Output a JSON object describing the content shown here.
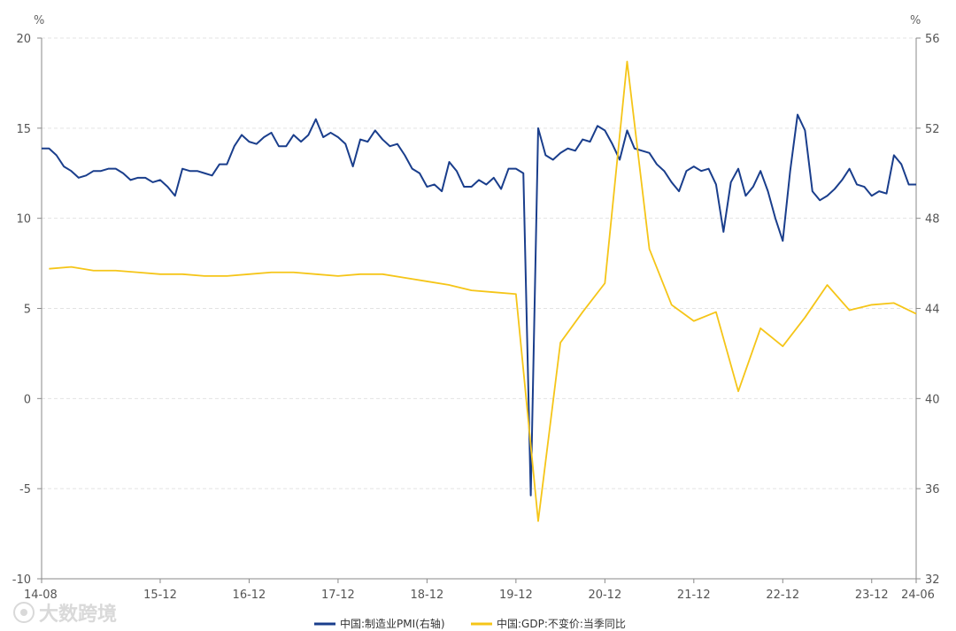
{
  "watermark": "大数跨境",
  "chart_data": {
    "type": "line",
    "grid": "horizontal dashed",
    "legend_position": "bottom-center",
    "x_ticks": [
      "14-08",
      "15-12",
      "16-12",
      "17-12",
      "18-12",
      "19-12",
      "20-12",
      "21-12",
      "22-12",
      "23-12",
      "24-06"
    ],
    "y_left": {
      "unit": "%",
      "range": [
        -10,
        20
      ],
      "ticks": [
        20,
        15,
        10,
        5,
        0,
        -5,
        -10
      ]
    },
    "y_right": {
      "unit": "%",
      "range": [
        32,
        56
      ],
      "ticks": [
        56,
        52,
        48,
        44,
        40,
        36,
        32
      ]
    },
    "colors": {
      "pmi": "#1a3e8c",
      "gdp": "#f5c518"
    },
    "series": [
      {
        "name": "中国:制造业PMI(右轴)",
        "axis": "right",
        "color": "#1a3e8c",
        "x": [
          "2014-08",
          "2014-09",
          "2014-10",
          "2014-11",
          "2014-12",
          "2015-01",
          "2015-02",
          "2015-03",
          "2015-04",
          "2015-05",
          "2015-06",
          "2015-07",
          "2015-08",
          "2015-09",
          "2015-10",
          "2015-11",
          "2015-12",
          "2016-01",
          "2016-02",
          "2016-03",
          "2016-04",
          "2016-05",
          "2016-06",
          "2016-07",
          "2016-08",
          "2016-09",
          "2016-10",
          "2016-11",
          "2016-12",
          "2017-01",
          "2017-02",
          "2017-03",
          "2017-04",
          "2017-05",
          "2017-06",
          "2017-07",
          "2017-08",
          "2017-09",
          "2017-10",
          "2017-11",
          "2017-12",
          "2018-01",
          "2018-02",
          "2018-03",
          "2018-04",
          "2018-05",
          "2018-06",
          "2018-07",
          "2018-08",
          "2018-09",
          "2018-10",
          "2018-11",
          "2018-12",
          "2019-01",
          "2019-02",
          "2019-03",
          "2019-04",
          "2019-05",
          "2019-06",
          "2019-07",
          "2019-08",
          "2019-09",
          "2019-10",
          "2019-11",
          "2019-12",
          "2020-01",
          "2020-02",
          "2020-03",
          "2020-04",
          "2020-05",
          "2020-06",
          "2020-07",
          "2020-08",
          "2020-09",
          "2020-10",
          "2020-11",
          "2020-12",
          "2021-01",
          "2021-02",
          "2021-03",
          "2021-04",
          "2021-05",
          "2021-06",
          "2021-07",
          "2021-08",
          "2021-09",
          "2021-10",
          "2021-11",
          "2021-12",
          "2022-01",
          "2022-02",
          "2022-03",
          "2022-04",
          "2022-05",
          "2022-06",
          "2022-07",
          "2022-08",
          "2022-09",
          "2022-10",
          "2022-11",
          "2022-12",
          "2023-01",
          "2023-02",
          "2023-03",
          "2023-04",
          "2023-05",
          "2023-06",
          "2023-07",
          "2023-08",
          "2023-09",
          "2023-10",
          "2023-11",
          "2023-12",
          "2024-01",
          "2024-02",
          "2024-03",
          "2024-04",
          "2024-05",
          "2024-06"
        ],
        "values": [
          51.1,
          51.1,
          50.8,
          50.3,
          50.1,
          49.8,
          49.9,
          50.1,
          50.1,
          50.2,
          50.2,
          50.0,
          49.7,
          49.8,
          49.8,
          49.6,
          49.7,
          49.4,
          49.0,
          50.2,
          50.1,
          50.1,
          50.0,
          49.9,
          50.4,
          50.4,
          51.2,
          51.7,
          51.4,
          51.3,
          51.6,
          51.8,
          51.2,
          51.2,
          51.7,
          51.4,
          51.7,
          52.4,
          51.6,
          51.8,
          51.6,
          51.3,
          50.3,
          51.5,
          51.4,
          51.9,
          51.5,
          51.2,
          51.3,
          50.8,
          50.2,
          50.0,
          49.4,
          49.5,
          49.2,
          50.5,
          50.1,
          49.4,
          49.4,
          49.7,
          49.5,
          49.8,
          49.3,
          50.2,
          50.2,
          50.0,
          35.7,
          52.0,
          50.8,
          50.6,
          50.9,
          51.1,
          51.0,
          51.5,
          51.4,
          52.1,
          51.9,
          51.3,
          50.6,
          51.9,
          51.1,
          51.0,
          50.9,
          50.4,
          50.1,
          49.6,
          49.2,
          50.1,
          50.3,
          50.1,
          50.2,
          49.5,
          47.4,
          49.6,
          50.2,
          49.0,
          49.4,
          50.1,
          49.2,
          48.0,
          47.0,
          50.1,
          52.6,
          51.9,
          49.2,
          48.8,
          49.0,
          49.3,
          49.7,
          50.2,
          49.5,
          49.4,
          49.0,
          49.2,
          49.1,
          50.8,
          50.4,
          49.5,
          49.5
        ]
      },
      {
        "name": "中国:GDP:不变价:当季同比",
        "axis": "left",
        "color": "#f5c518",
        "x": [
          "2014-09",
          "2014-12",
          "2015-03",
          "2015-06",
          "2015-09",
          "2015-12",
          "2016-03",
          "2016-06",
          "2016-09",
          "2016-12",
          "2017-03",
          "2017-06",
          "2017-09",
          "2017-12",
          "2018-03",
          "2018-06",
          "2018-09",
          "2018-12",
          "2019-03",
          "2019-06",
          "2019-09",
          "2019-12",
          "2020-03",
          "2020-06",
          "2020-09",
          "2020-12",
          "2021-03",
          "2021-06",
          "2021-09",
          "2021-12",
          "2022-03",
          "2022-06",
          "2022-09",
          "2022-12",
          "2023-03",
          "2023-06",
          "2023-09",
          "2023-12",
          "2024-03",
          "2024-06"
        ],
        "values": [
          7.2,
          7.3,
          7.1,
          7.1,
          7.0,
          6.9,
          6.9,
          6.8,
          6.8,
          6.9,
          7.0,
          7.0,
          6.9,
          6.8,
          6.9,
          6.9,
          6.7,
          6.5,
          6.3,
          6.0,
          5.9,
          5.8,
          -6.8,
          3.1,
          4.8,
          6.4,
          18.7,
          8.3,
          5.2,
          4.3,
          4.8,
          0.4,
          3.9,
          2.9,
          4.5,
          6.3,
          4.9,
          5.2,
          5.3,
          4.7
        ]
      }
    ]
  }
}
